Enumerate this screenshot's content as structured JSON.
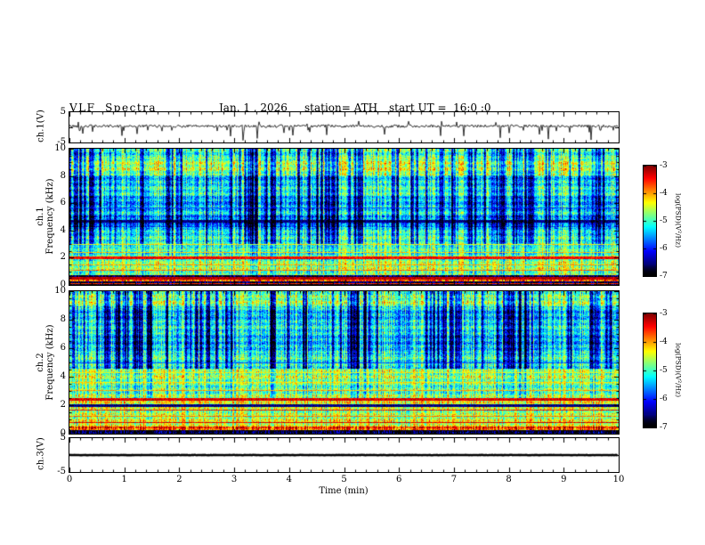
{
  "header": {
    "title": "VLF  Spectra",
    "date": "Jan. 1 , 2026",
    "station": "station= ATH",
    "start_ut": "start UT =  16:0 :0"
  },
  "x_axis": {
    "label": "Time  (min)",
    "range": [
      0,
      10
    ],
    "ticks": [
      0,
      1,
      2,
      3,
      4,
      5,
      6,
      7,
      8,
      9,
      10
    ]
  },
  "colorbar": {
    "label": "log(PSD)(V²/Hz)",
    "ticks": [
      -3,
      -4,
      -5,
      -6,
      -7
    ],
    "max": -3,
    "min": -7
  },
  "chart_data": [
    {
      "type": "line",
      "panel": "ch1_voltage_waveform",
      "ylabel": "ch.1(V)",
      "ylim": [
        -5,
        5
      ],
      "yticks": [
        5,
        -5
      ],
      "x_range": [
        0,
        10
      ],
      "line_color": "#000000",
      "signal": {
        "baseline": 0.4,
        "noise_amp": 0.45,
        "spike_rate": 0.07,
        "spike_min": -4.6,
        "spike_max": 2.2,
        "line_width": 0.8
      }
    },
    {
      "type": "heatmap",
      "panel": "ch1_spectrogram",
      "ylabel": "ch.1 Frequency (kHz)",
      "ylabel_line1": "ch.1",
      "ylabel_line2": "Frequency (kHz)",
      "ylim": [
        0,
        10
      ],
      "yticks": [
        0,
        2,
        4,
        6,
        8,
        10
      ],
      "x_range": [
        0,
        10
      ],
      "colorbar_range": [
        -7,
        -3
      ],
      "bands": [
        {
          "from": 0,
          "to": 0.28,
          "level": 0.05
        },
        {
          "from": 0.28,
          "to": 0.5,
          "level": 0.8
        },
        {
          "from": 0.5,
          "to": 0.75,
          "level": 0.1
        },
        {
          "from": 0.75,
          "to": 1.6,
          "level": 0.6
        },
        {
          "from": 1.6,
          "to": 2.9,
          "level": 0.55
        },
        {
          "from": 2.9,
          "to": 4.3,
          "level": 0.48
        },
        {
          "from": 4.3,
          "to": 5.1,
          "level": 0.33
        },
        {
          "from": 5.1,
          "to": 6.6,
          "level": 0.42
        },
        {
          "from": 6.6,
          "to": 8.1,
          "level": 0.46
        },
        {
          "from": 8.1,
          "to": 9.4,
          "level": 0.6
        },
        {
          "from": 9.4,
          "to": 10.01,
          "level": 0.54
        }
      ],
      "lines": [
        {
          "f": 0.15,
          "level": 0.85,
          "width": 1
        },
        {
          "f": 0.5,
          "level": 0.95,
          "width": 2
        },
        {
          "f": 1.1,
          "level": 0.8,
          "width": 1
        },
        {
          "f": 1.5,
          "level": 0.75,
          "width": 1
        },
        {
          "f": 2.0,
          "level": 0.9,
          "width": 2
        },
        {
          "f": 2.4,
          "level": 0.72,
          "width": 1
        },
        {
          "f": 3.0,
          "level": 0.7,
          "width": 1
        },
        {
          "f": 4.7,
          "level": 0.12,
          "width": 2
        },
        {
          "f": 5.7,
          "level": 0.3,
          "width": 1
        }
      ],
      "streaks": {
        "prob": 0.16,
        "cluster_period_min": 1.6,
        "bands": [
          {
            "from": 0.75,
            "to": 3,
            "weight": 0.12
          },
          {
            "from": 3,
            "to": 10.01,
            "weight": 0.42
          }
        ]
      }
    },
    {
      "type": "heatmap",
      "panel": "ch2_spectrogram",
      "ylabel": "ch.2 Frequency (kHz)",
      "ylabel_line1": "ch.2",
      "ylabel_line2": "Frequency (kHz)",
      "ylim": [
        0,
        10
      ],
      "yticks": [
        0,
        2,
        4,
        6,
        8,
        10
      ],
      "x_range": [
        0,
        10
      ],
      "colorbar_range": [
        -7,
        -3
      ],
      "bands": [
        {
          "from": 0,
          "to": 0.3,
          "level": 0.05
        },
        {
          "from": 0.3,
          "to": 0.55,
          "level": 0.82
        },
        {
          "from": 0.55,
          "to": 2.3,
          "level": 0.62
        },
        {
          "from": 2.3,
          "to": 4.6,
          "level": 0.58
        },
        {
          "from": 4.6,
          "to": 5.6,
          "level": 0.5
        },
        {
          "from": 5.6,
          "to": 6.4,
          "level": 0.4
        },
        {
          "from": 6.4,
          "to": 9.0,
          "level": 0.43
        },
        {
          "from": 9.0,
          "to": 10.01,
          "level": 0.56
        }
      ],
      "lines": [
        {
          "f": 0.8,
          "level": 0.92,
          "width": 1
        },
        {
          "f": 1.25,
          "level": 0.78,
          "width": 1
        },
        {
          "f": 1.7,
          "level": 0.88,
          "width": 1
        },
        {
          "f": 2.0,
          "level": 0.12,
          "width": 2
        },
        {
          "f": 2.45,
          "level": 0.92,
          "width": 2
        },
        {
          "f": 3.05,
          "level": 0.76,
          "width": 1
        },
        {
          "f": 3.6,
          "level": 0.7,
          "width": 1
        },
        {
          "f": 4.3,
          "level": 0.68,
          "width": 1
        },
        {
          "f": 5.0,
          "level": 0.3,
          "width": 1
        }
      ],
      "streaks": {
        "prob": 0.17,
        "cluster_period_min": 1.4,
        "bands": [
          {
            "from": 2.5,
            "to": 4.6,
            "weight": 0.15
          },
          {
            "from": 4.6,
            "to": 10.01,
            "weight": 0.45
          }
        ]
      }
    },
    {
      "type": "line",
      "panel": "ch3_voltage_waveform",
      "ylabel": "ch.3(V)",
      "ylim": [
        -5,
        5
      ],
      "yticks": [
        5,
        -5
      ],
      "x_range": [
        0,
        10
      ],
      "line_color": "#000000",
      "signal": {
        "baseline": 0.0,
        "noise_amp": 0.05,
        "spike_rate": 0,
        "spike_min": 0,
        "spike_max": 0,
        "line_width": 2.5
      }
    }
  ]
}
